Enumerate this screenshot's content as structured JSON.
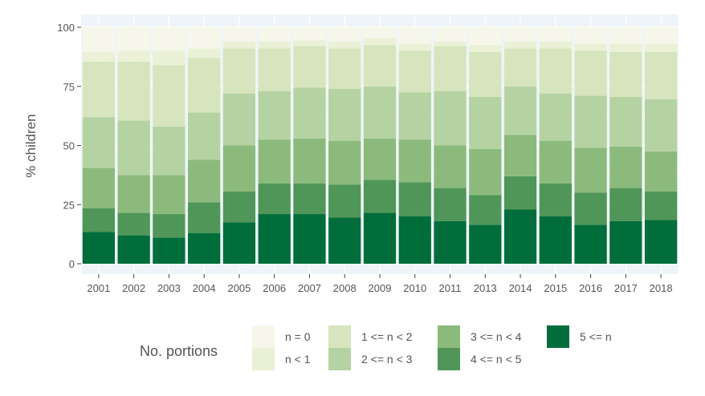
{
  "chart_data": {
    "type": "bar",
    "stacked": true,
    "ylabel": "% children",
    "xlabel": "",
    "ylim": [
      0,
      100
    ],
    "yticks": [
      0,
      25,
      50,
      75,
      100
    ],
    "grid": true,
    "legend_position": "bottom",
    "legend_title": "No. portions",
    "categories": [
      "2001",
      "2002",
      "2003",
      "2004",
      "2005",
      "2006",
      "2007",
      "2008",
      "2009",
      "2010",
      "2011",
      "2013",
      "2014",
      "2015",
      "2016",
      "2017",
      "2018"
    ],
    "series": [
      {
        "name": "5 <= n",
        "color": "#006d3a",
        "values": [
          13.5,
          12,
          11,
          13,
          17.5,
          21,
          21,
          19.5,
          21.5,
          20,
          18,
          16.5,
          23,
          20,
          16.5,
          18,
          18.5
        ]
      },
      {
        "name": "4 <= n < 5",
        "color": "#4f9658",
        "values": [
          10,
          9.5,
          10,
          13,
          13,
          13,
          13,
          14,
          14,
          14.5,
          14,
          12.5,
          14,
          14,
          13.5,
          14,
          12
        ]
      },
      {
        "name": "3 <= n < 4",
        "color": "#8cba7c",
        "values": [
          17,
          16,
          16.5,
          18,
          19.5,
          18.5,
          19,
          18.5,
          17.5,
          18,
          18,
          19.5,
          17.5,
          18,
          19,
          17.5,
          17
        ]
      },
      {
        "name": "2 <= n < 3",
        "color": "#b5d3a2",
        "values": [
          21.5,
          23,
          20.5,
          20,
          22,
          20.5,
          21.5,
          22,
          22,
          20,
          23,
          22,
          20.5,
          20,
          22,
          21,
          22
        ]
      },
      {
        "name": "1 <= n < 2",
        "color": "#d6e5bd",
        "values": [
          23.5,
          25,
          26,
          23,
          19,
          18,
          17.5,
          17,
          17.5,
          17.5,
          19,
          19,
          16,
          19,
          19,
          19,
          20
        ]
      },
      {
        "name": "n < 1",
        "color": "#eaf1d6",
        "values": [
          4,
          4.5,
          6,
          4,
          3,
          3,
          2.5,
          3,
          3,
          3,
          2,
          3,
          3,
          3,
          3,
          3.5,
          3.5
        ]
      },
      {
        "name": "n = 0",
        "color": "#f7f6ea",
        "values": [
          10.5,
          10,
          10,
          9,
          6,
          6,
          5.5,
          6,
          4.5,
          7,
          6,
          7.5,
          6,
          6,
          7,
          7,
          7
        ]
      }
    ],
    "legend_order": [
      "n = 0",
      "n < 1",
      "1 <= n < 2",
      "2 <= n < 3",
      "3 <= n < 4",
      "4 <= n < 5",
      "5 <= n"
    ]
  }
}
